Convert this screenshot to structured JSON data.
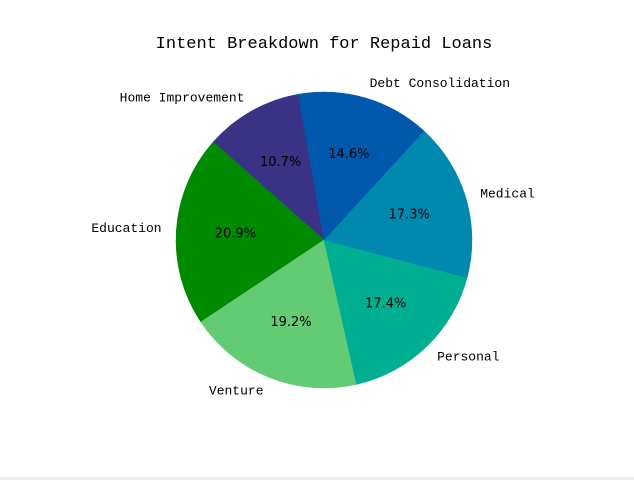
{
  "chart_data": {
    "type": "pie",
    "title": "Intent Breakdown for Repaid Loans",
    "start_angle_deg": 100,
    "direction": "counterclockwise",
    "slices": [
      {
        "name": "Home Improvement",
        "value": 10.7,
        "pct_label": "10.7%",
        "color": "#3a3285"
      },
      {
        "name": "Education",
        "value": 20.9,
        "pct_label": "20.9%",
        "color": "#008a00"
      },
      {
        "name": "Venture",
        "value": 19.2,
        "pct_label": "19.2%",
        "color": "#63cb73"
      },
      {
        "name": "Personal",
        "value": 17.4,
        "pct_label": "17.4%",
        "color": "#00ae92"
      },
      {
        "name": "Medical",
        "value": 17.3,
        "pct_label": "17.3%",
        "color": "#0088ae"
      },
      {
        "name": "Debt Consolidation",
        "value": 14.6,
        "pct_label": "14.6%",
        "color": "#0058ad"
      }
    ]
  }
}
